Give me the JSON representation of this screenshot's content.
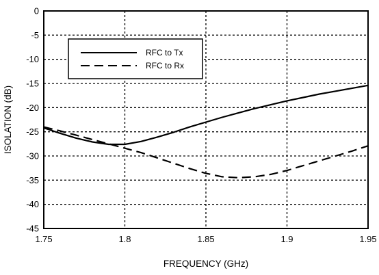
{
  "chart_data": {
    "type": "line",
    "title": "",
    "xlabel": "FREQUENCY (GHz)",
    "ylabel": "ISOLATION (dB)",
    "xlim": [
      1.75,
      1.95
    ],
    "ylim": [
      -45,
      0
    ],
    "x_ticks": [
      "1.75",
      "1.8",
      "1.85",
      "1.9",
      "1.95"
    ],
    "y_ticks": [
      "0",
      "-5",
      "-10",
      "-15",
      "-20",
      "-25",
      "-30",
      "-35",
      "-40",
      "-45"
    ],
    "grid": true,
    "legend_position": "top-left",
    "series": [
      {
        "name": "RFC to Tx",
        "style": "solid",
        "color": "#000000",
        "x": [
          1.75,
          1.76,
          1.77,
          1.78,
          1.79,
          1.8,
          1.81,
          1.82,
          1.83,
          1.84,
          1.85,
          1.86,
          1.87,
          1.88,
          1.89,
          1.9,
          1.91,
          1.92,
          1.93,
          1.94,
          1.95
        ],
        "y": [
          -24.2,
          -25.3,
          -26.3,
          -27.1,
          -27.6,
          -27.6,
          -27.0,
          -26.1,
          -25.1,
          -24.0,
          -23.0,
          -22.0,
          -21.1,
          -20.2,
          -19.4,
          -18.6,
          -17.9,
          -17.2,
          -16.6,
          -16.0,
          -15.4
        ]
      },
      {
        "name": "RFC to Rx",
        "style": "dashed",
        "color": "#000000",
        "x": [
          1.75,
          1.76,
          1.77,
          1.78,
          1.79,
          1.8,
          1.81,
          1.82,
          1.83,
          1.84,
          1.85,
          1.86,
          1.87,
          1.88,
          1.89,
          1.9,
          1.91,
          1.92,
          1.93,
          1.94,
          1.95
        ],
        "y": [
          -24.0,
          -24.8,
          -25.7,
          -26.6,
          -27.5,
          -28.4,
          -29.3,
          -30.4,
          -31.5,
          -32.6,
          -33.6,
          -34.3,
          -34.5,
          -34.3,
          -33.8,
          -33.0,
          -32.0,
          -31.0,
          -30.0,
          -29.0,
          -27.9
        ]
      }
    ]
  }
}
